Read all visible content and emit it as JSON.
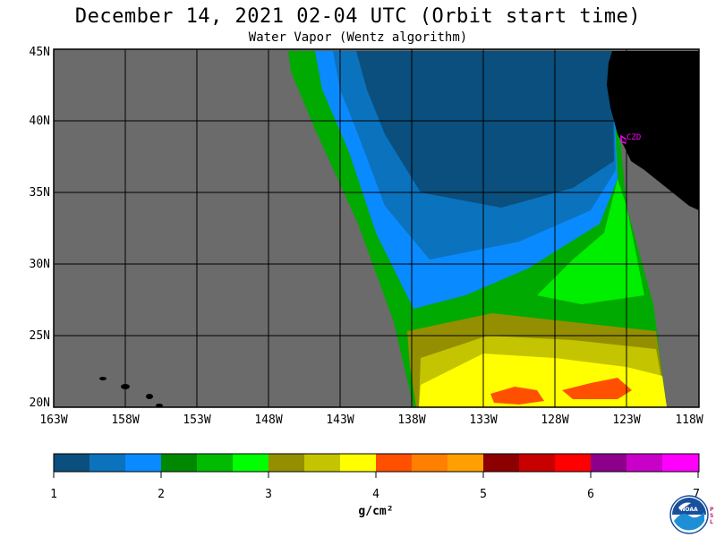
{
  "title": "December 14, 2021  02-04 UTC  (Orbit start time)",
  "subtitle": "Water Vapor (Wentz algorithm)",
  "map": {
    "lat_labels": [
      "45N",
      "40N",
      "35N",
      "30N",
      "25N",
      "20N"
    ],
    "lon_labels": [
      "163W",
      "158W",
      "153W",
      "148W",
      "143W",
      "138W",
      "133W",
      "128W",
      "123W",
      "118W"
    ],
    "station_label": "CZD",
    "land_color": "#000000",
    "nodata_color": "#6b6b6b",
    "station_color": "#ff00ff"
  },
  "colorbar": {
    "tick_labels": [
      "1",
      "2",
      "3",
      "4",
      "5",
      "6",
      "7"
    ],
    "units": "g/cm²",
    "colors": [
      "#0a4f7d",
      "#0b72bd",
      "#0a8aff",
      "#008800",
      "#00bb00",
      "#00ff00",
      "#948f00",
      "#c4c400",
      "#ffff00",
      "#ff5000",
      "#ff7f00",
      "#ffa000",
      "#8c0000",
      "#c80000",
      "#ff0000",
      "#8c008c",
      "#c800c8",
      "#ff00ff"
    ]
  },
  "logo": {
    "name": "NOAA",
    "side_text": [
      "P",
      "S",
      "L"
    ]
  }
}
